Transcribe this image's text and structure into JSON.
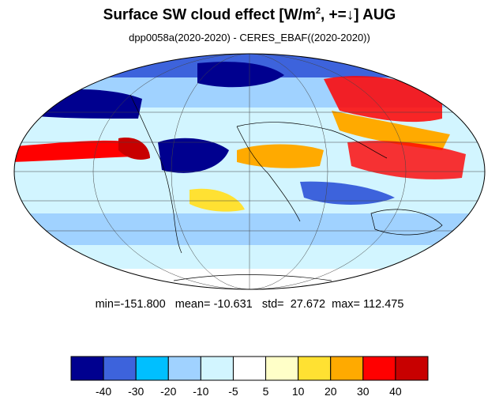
{
  "title": {
    "main": "Surface SW cloud effect [W/m",
    "sup": "2",
    "rest": ", +=↓]  AUG"
  },
  "subtitle": "dpp0058a(2020-2020) - CERES_EBAF((2020-2020))",
  "stats": {
    "min_label": "min=",
    "min": "-151.800",
    "mean_label": "mean=",
    "mean": "-10.631",
    "std_label": "std=",
    "std": "27.672",
    "max_label": "max=",
    "max": "112.475"
  },
  "colorbar": {
    "colors": [
      "#00008f",
      "#3d63dc",
      "#00bfff",
      "#a0d2ff",
      "#d2f5ff",
      "#ffffff",
      "#ffffc8",
      "#ffe132",
      "#ffaa00",
      "#ff0000",
      "#c80000"
    ],
    "tick_labels": [
      "-40",
      "-30",
      "-20",
      "-10",
      "-5",
      "5",
      "10",
      "20",
      "30",
      "40"
    ]
  },
  "map": {
    "projection": "mollweide",
    "graticule": true,
    "coastlines": true,
    "background_class": "#ffffff"
  }
}
